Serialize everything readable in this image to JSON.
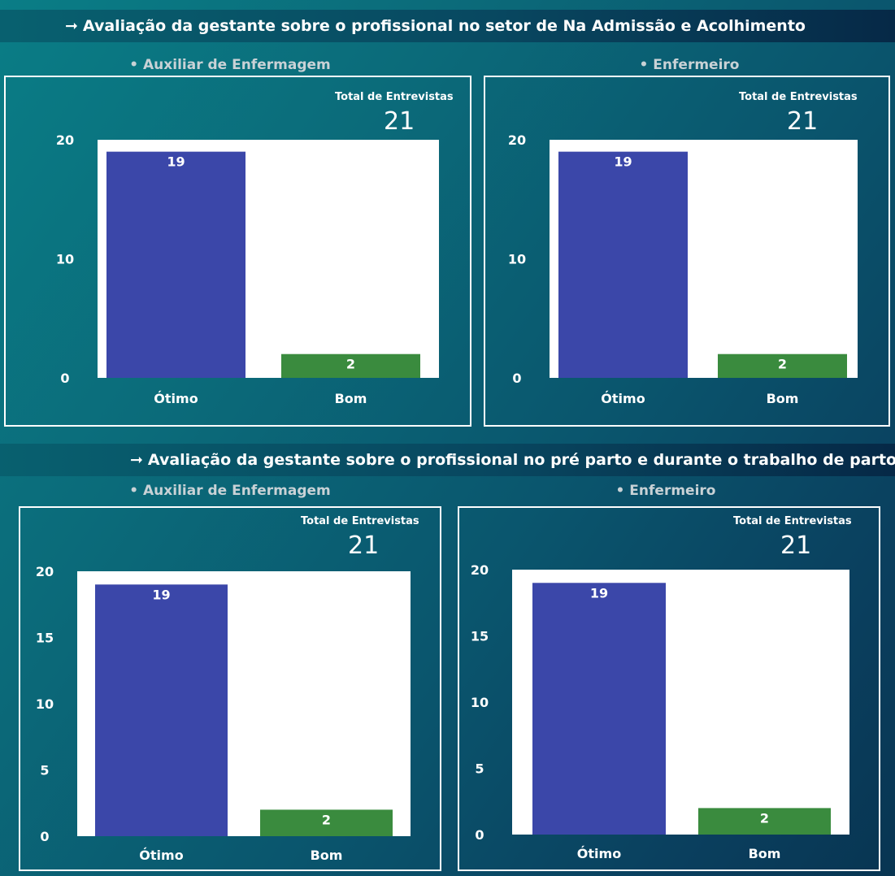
{
  "colors": {
    "otimo": "#3b47a9",
    "bom": "#3a8b3e",
    "plot_bg": "#ffffff",
    "axis_text": "#ffffff",
    "bar_label": "#ffffff"
  },
  "sections": [
    {
      "arrow": "➞",
      "title": "Avaliação da gestante sobre o profissional  no setor de Na Admissão e Acolhimento"
    },
    {
      "arrow": "➞",
      "title": "Avaliação da gestante sobre o profissional  no pré parto e durante o trabalho de parto"
    }
  ],
  "panels": [
    {
      "subtitle": "• Auxiliar de Enfermagem",
      "total_label": "Total de Entrevistas",
      "total_value": "21"
    },
    {
      "subtitle": "• Enfermeiro",
      "total_label": "Total de Entrevistas",
      "total_value": "21"
    },
    {
      "subtitle": "• Auxiliar de Enfermagem",
      "total_label": "Total de Entrevistas",
      "total_value": "21"
    },
    {
      "subtitle": "• Enfermeiro",
      "total_label": "Total de Entrevistas",
      "total_value": "21"
    }
  ],
  "chart_data": [
    {
      "type": "bar",
      "categories": [
        "Ótimo",
        "Bom"
      ],
      "values": [
        19,
        2
      ],
      "ylim": [
        0,
        20
      ],
      "yticks": [
        0,
        10,
        20
      ],
      "grid": false
    },
    {
      "type": "bar",
      "categories": [
        "Ótimo",
        "Bom"
      ],
      "values": [
        19,
        2
      ],
      "ylim": [
        0,
        20
      ],
      "yticks": [
        0,
        10,
        20
      ],
      "grid": false
    },
    {
      "type": "bar",
      "categories": [
        "Ótimo",
        "Bom"
      ],
      "values": [
        19,
        2
      ],
      "ylim": [
        0,
        20
      ],
      "yticks": [
        0,
        5,
        10,
        15,
        20
      ],
      "grid": false
    },
    {
      "type": "bar",
      "categories": [
        "Ótimo",
        "Bom"
      ],
      "values": [
        19,
        2
      ],
      "ylim": [
        0,
        20
      ],
      "yticks": [
        0,
        5,
        10,
        15,
        20
      ],
      "grid": false
    }
  ]
}
